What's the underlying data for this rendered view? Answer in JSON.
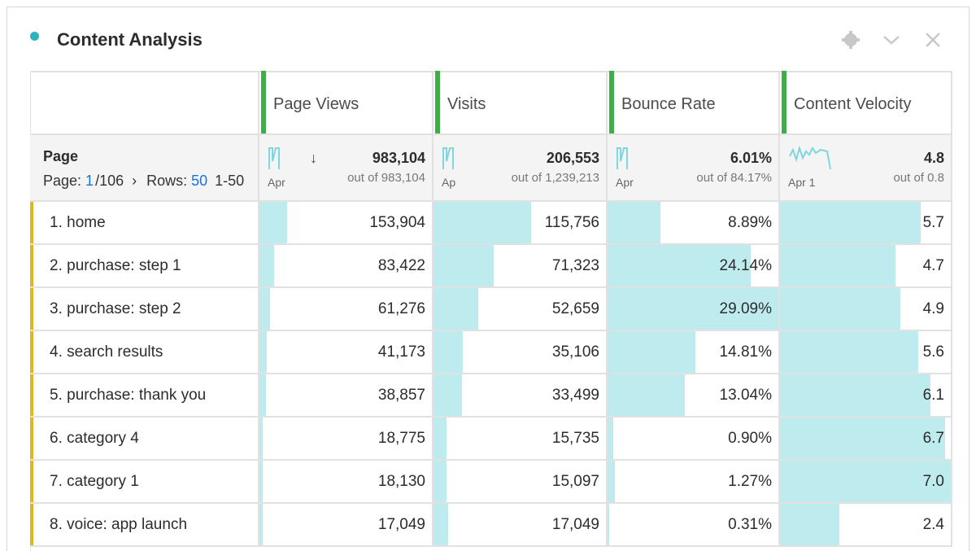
{
  "header": {
    "title": "Content Analysis"
  },
  "table": {
    "columns": [
      "Page Views",
      "Visits",
      "Bounce Rate",
      "Content Velocity"
    ],
    "summary": {
      "dimension": "Page",
      "page_label": "Page:",
      "page": "1",
      "page_total": "/106",
      "rows_label": "Rows:",
      "rows": "50",
      "range": "1-50",
      "metrics": [
        {
          "value": "983,104",
          "out_of": "out of 983,104",
          "axis": "Apr"
        },
        {
          "value": "206,553",
          "out_of": "out of 1,239,213",
          "axis": "Ap"
        },
        {
          "value": "6.01%",
          "out_of": "out of 84.17%",
          "axis": "Apr"
        },
        {
          "value": "4.8",
          "out_of": "out of 0.8",
          "axis": "Apr 1"
        }
      ]
    },
    "rows": [
      [
        "1. home",
        "153,904",
        "115,756",
        "8.89%",
        "5.7"
      ],
      [
        "2. purchase: step 1",
        "83,422",
        "71,323",
        "24.14%",
        "4.7"
      ],
      [
        "3. purchase: step 2",
        "61,276",
        "52,659",
        "29.09%",
        "4.9"
      ],
      [
        "4. search results",
        "41,173",
        "35,106",
        "14.81%",
        "5.6"
      ],
      [
        "5. purchase: thank you",
        "38,857",
        "33,499",
        "13.04%",
        "6.1"
      ],
      [
        "6. category 4",
        "18,775",
        "15,735",
        "0.90%",
        "6.7"
      ],
      [
        "7. category 1",
        "18,130",
        "15,097",
        "1.27%",
        "7.0"
      ],
      [
        "8. voice: app launch",
        "17,049",
        "17,049",
        "0.31%",
        "2.4"
      ]
    ]
  }
}
